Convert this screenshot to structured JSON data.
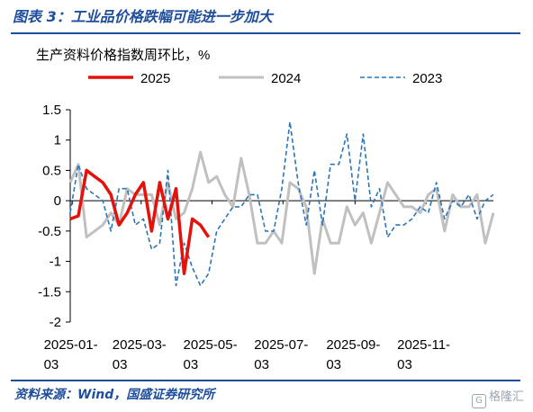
{
  "header": {
    "title": "图表 3：工业品价格跌幅可能进一步加大"
  },
  "footer": {
    "source": "资料来源：Wind，国盛证券研究所",
    "watermark": "格隆汇"
  },
  "chart_data": {
    "type": "line",
    "ylabel": "生产资料价格指数周环比，%",
    "ylim": [
      -2,
      1.5
    ],
    "yticks": [
      1.5,
      1,
      0.5,
      0,
      -0.5,
      -1,
      -1.5,
      -2
    ],
    "ytick_labels": [
      "1.5",
      "1",
      "0.5",
      "0",
      "-0.5",
      "-1",
      "-1.5",
      "-2"
    ],
    "x_range": [
      "2025-01-01",
      "2025-12-31"
    ],
    "xticks": [
      "2025-01-03",
      "2025-03-03",
      "2025-05-03",
      "2025-07-03",
      "2025-09-03",
      "2025-11-03"
    ],
    "xtick_labels": [
      [
        "2025-01-",
        "03"
      ],
      [
        "2025-03-",
        "03"
      ],
      [
        "2025-05-",
        "03"
      ],
      [
        "2025-07-",
        "03"
      ],
      [
        "2025-09-",
        "03"
      ],
      [
        "2025-11-",
        "03"
      ]
    ],
    "legend_position": "top",
    "series": [
      {
        "name": "2025",
        "color": "#e3120b",
        "style": "solid-thick",
        "x": [
          "2025-01-01",
          "2025-01-08",
          "2025-01-15",
          "2025-01-22",
          "2025-01-29",
          "2025-02-05",
          "2025-02-12",
          "2025-02-19",
          "2025-02-26",
          "2025-03-05",
          "2025-03-12",
          "2025-03-19",
          "2025-03-26",
          "2025-04-02",
          "2025-04-09",
          "2025-04-16",
          "2025-04-23",
          "2025-04-30"
        ],
        "y": [
          -0.3,
          -0.25,
          0.5,
          0.4,
          0.3,
          0.1,
          -0.4,
          -0.2,
          0.1,
          0.3,
          -0.5,
          0.3,
          -0.3,
          0.2,
          -1.2,
          -0.3,
          -0.4,
          -0.6
        ]
      },
      {
        "name": "2024",
        "color": "#c0c0c0",
        "style": "solid-thick",
        "x": [
          "2025-01-01",
          "2025-01-08",
          "2025-01-15",
          "2025-01-22",
          "2025-01-29",
          "2025-02-05",
          "2025-02-12",
          "2025-02-19",
          "2025-02-26",
          "2025-03-05",
          "2025-03-12",
          "2025-03-19",
          "2025-03-26",
          "2025-04-02",
          "2025-04-09",
          "2025-04-16",
          "2025-04-23",
          "2025-04-30",
          "2025-05-07",
          "2025-05-14",
          "2025-05-21",
          "2025-05-28",
          "2025-06-04",
          "2025-06-11",
          "2025-06-18",
          "2025-06-25",
          "2025-07-02",
          "2025-07-09",
          "2025-07-16",
          "2025-07-23",
          "2025-07-30",
          "2025-08-06",
          "2025-08-13",
          "2025-08-20",
          "2025-08-27",
          "2025-09-03",
          "2025-09-10",
          "2025-09-17",
          "2025-09-24",
          "2025-10-01",
          "2025-10-08",
          "2025-10-15",
          "2025-10-22",
          "2025-10-29",
          "2025-11-05",
          "2025-11-12",
          "2025-11-19",
          "2025-11-26",
          "2025-12-03",
          "2025-12-10",
          "2025-12-17",
          "2025-12-24",
          "2025-12-31"
        ],
        "y": [
          0.3,
          0.6,
          -0.6,
          -0.5,
          -0.4,
          -0.2,
          -0.4,
          0.2,
          0.1,
          0.1,
          0.1,
          -0.4,
          0.3,
          -0.3,
          -0.2,
          0.2,
          0.8,
          0.3,
          0.4,
          0.1,
          -0.1,
          0.7,
          0.1,
          -0.7,
          -0.7,
          -0.5,
          -0.7,
          0.3,
          0.2,
          -0.1,
          -1.2,
          -0.3,
          -0.7,
          -0.7,
          -0.1,
          -0.4,
          -0.2,
          -0.7,
          -0.2,
          0.3,
          0.1,
          -0.1,
          -0.1,
          -0.2,
          0.1,
          0.2,
          -0.5,
          0.1,
          -0.1,
          -0.1,
          0.1,
          -0.7,
          -0.2
        ]
      },
      {
        "name": "2023",
        "color": "#2e75b6",
        "style": "dashed",
        "x": [
          "2025-01-01",
          "2025-01-08",
          "2025-01-15",
          "2025-01-22",
          "2025-01-29",
          "2025-02-05",
          "2025-02-12",
          "2025-02-19",
          "2025-02-26",
          "2025-03-05",
          "2025-03-12",
          "2025-03-19",
          "2025-03-26",
          "2025-04-02",
          "2025-04-09",
          "2025-04-16",
          "2025-04-23",
          "2025-04-30",
          "2025-05-07",
          "2025-05-14",
          "2025-05-21",
          "2025-05-28",
          "2025-06-04",
          "2025-06-11",
          "2025-06-18",
          "2025-06-25",
          "2025-07-02",
          "2025-07-09",
          "2025-07-16",
          "2025-07-23",
          "2025-07-30",
          "2025-08-06",
          "2025-08-13",
          "2025-08-20",
          "2025-08-27",
          "2025-09-03",
          "2025-09-10",
          "2025-09-17",
          "2025-09-24",
          "2025-10-01",
          "2025-10-08",
          "2025-10-15",
          "2025-10-22",
          "2025-10-29",
          "2025-11-05",
          "2025-11-12",
          "2025-11-19",
          "2025-11-26",
          "2025-12-03",
          "2025-12-10",
          "2025-12-17",
          "2025-12-24",
          "2025-12-31"
        ],
        "y": [
          -0.2,
          0.6,
          0.2,
          0.1,
          0.0,
          -0.5,
          0.2,
          0.2,
          -0.4,
          -0.3,
          -0.8,
          -0.7,
          0.5,
          -1.4,
          -0.7,
          -1.1,
          -1.4,
          -1.2,
          -0.5,
          -0.3,
          -0.1,
          -0.1,
          0.1,
          0.1,
          -0.5,
          -0.5,
          0.2,
          1.3,
          0.3,
          -0.4,
          0.5,
          -0.4,
          0.6,
          0.6,
          1.1,
          0.0,
          1.1,
          -0.1,
          0.2,
          -0.6,
          -0.4,
          -0.4,
          -0.3,
          -0.1,
          -0.2,
          0.3,
          -0.3,
          0.0,
          -0.1,
          0.1,
          -0.3,
          0.0,
          0.1
        ]
      }
    ]
  }
}
